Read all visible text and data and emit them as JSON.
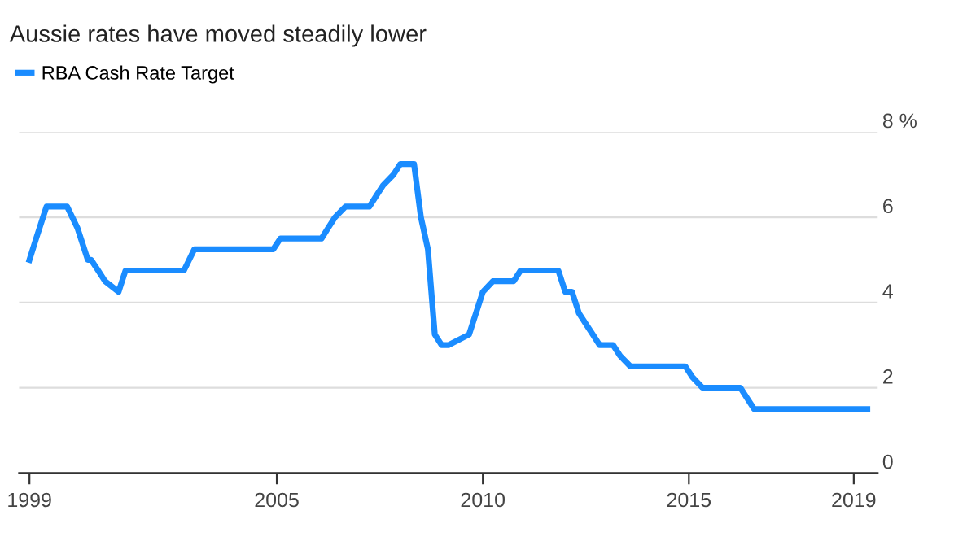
{
  "chart_data": {
    "type": "line",
    "title": "Aussie rates have moved steadily lower",
    "legend": "top left",
    "grid": "y",
    "x": [
      "1999-01",
      "1999-03",
      "1999-05",
      "1999-06",
      "1999-12",
      "2000-03",
      "2000-06",
      "2000-07",
      "2000-09",
      "2000-11",
      "2001-03",
      "2001-05",
      "2002-10",
      "2003-01",
      "2004-12",
      "2005-02",
      "2006-02",
      "2006-04",
      "2006-06",
      "2006-09",
      "2007-04",
      "2007-06",
      "2007-08",
      "2007-11",
      "2008-01",
      "2008-05",
      "2008-07",
      "2008-09",
      "2008-11",
      "2009-01",
      "2009-03",
      "2009-09",
      "2009-11",
      "2010-01",
      "2010-04",
      "2010-10",
      "2010-12",
      "2011-11",
      "2012-01",
      "2012-03",
      "2012-05",
      "2012-07",
      "2012-09",
      "2012-11",
      "2013-03",
      "2013-05",
      "2013-08",
      "2014-12",
      "2015-02",
      "2015-05",
      "2016-04",
      "2016-06",
      "2016-08",
      "2019-05"
    ],
    "series": [
      {
        "name": "RBA Cash Rate Target",
        "color": "#1a8cff",
        "values": [
          5.0,
          5.5,
          6.0,
          6.25,
          6.25,
          5.75,
          5.0,
          5.0,
          4.75,
          4.5,
          4.25,
          4.75,
          4.75,
          5.25,
          5.25,
          5.5,
          5.5,
          5.75,
          6.0,
          6.25,
          6.25,
          6.5,
          6.75,
          7.0,
          7.25,
          7.25,
          6.0,
          5.25,
          3.25,
          3.0,
          3.0,
          3.25,
          3.75,
          4.25,
          4.5,
          4.5,
          4.75,
          4.75,
          4.25,
          4.25,
          3.75,
          3.5,
          3.25,
          3.0,
          3.0,
          2.75,
          2.5,
          2.5,
          2.25,
          2.0,
          2.0,
          1.75,
          1.5,
          1.5
        ]
      }
    ],
    "xlim": [
      "1998-10",
      "2019-08"
    ],
    "xticks": [
      {
        "value": "1999-01",
        "label": "1999"
      },
      {
        "value": "2005-01",
        "label": "2005"
      },
      {
        "value": "2010-01",
        "label": "2010"
      },
      {
        "value": "2015-01",
        "label": "2015"
      },
      {
        "value": "2019-01",
        "label": "2019"
      }
    ],
    "ylim": [
      0,
      8
    ],
    "yticks": [
      0,
      2,
      4,
      6,
      {
        "value": 8,
        "label": "8 %"
      }
    ]
  }
}
